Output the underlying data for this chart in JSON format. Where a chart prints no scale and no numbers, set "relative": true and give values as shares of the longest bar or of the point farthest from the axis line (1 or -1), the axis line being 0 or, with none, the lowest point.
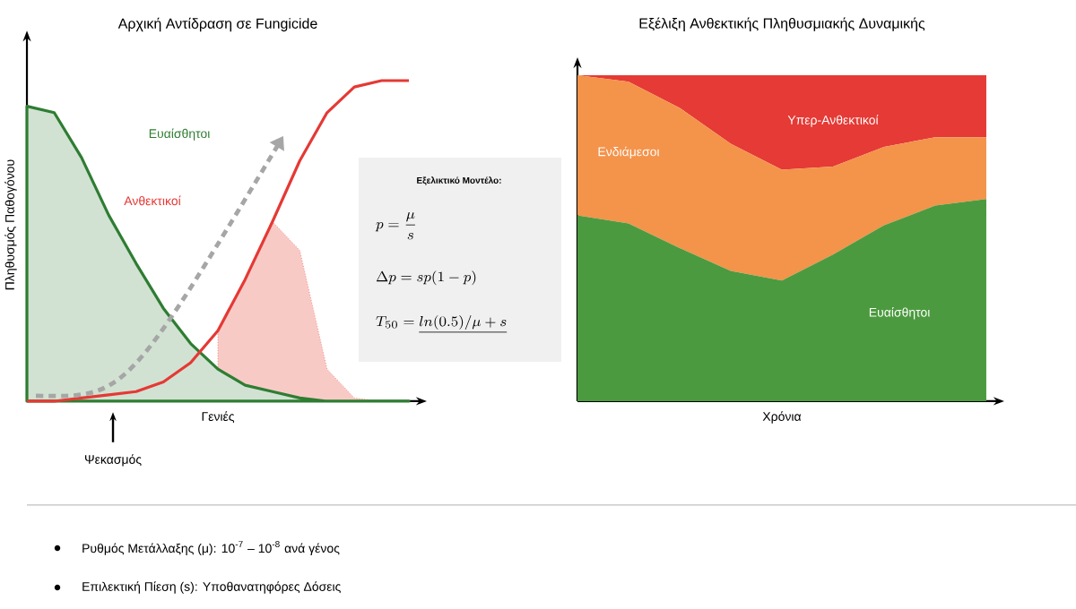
{
  "chart_data": [
    {
      "type": "line",
      "title": "Αρχική Αντίδραση σε Fungicide",
      "xlabel": "Γενιές",
      "ylabel": "Πληθυσμός Παθογόνου",
      "relative": true,
      "categories": [
        null,
        null,
        null,
        null,
        null,
        null,
        null,
        null,
        null,
        null,
        null,
        null,
        null,
        null,
        null
      ],
      "series": [
        {
          "name": "Ευαίσθητοι",
          "type": "area",
          "color": "#2e7d32",
          "values": [
            0.92,
            0.9,
            0.76,
            0.58,
            0.43,
            0.29,
            0.18,
            0.1,
            0.05,
            0.03,
            0.01,
            0,
            0,
            0,
            0
          ]
        },
        {
          "name": "Ανθεκτικοί",
          "type": "line",
          "color": "#e53935",
          "values": [
            0,
            0,
            0.01,
            0.02,
            0.03,
            0.06,
            0.12,
            0.22,
            0.38,
            0.56,
            0.75,
            0.9,
            0.98,
            1,
            1
          ]
        },
        {
          "type": "area",
          "color": "#f08a80",
          "values": [
            null,
            null,
            null,
            null,
            null,
            null,
            null,
            0.22,
            0.38,
            0.56,
            0.47,
            0.1,
            0.01,
            0,
            null
          ]
        }
      ],
      "annotations": [
        "Ψεκασμός",
        "Εξελικτικό Μοντέλο:",
        "p = \\frac{\\mu}{s}",
        "\\Delta p = sp(1-p)",
        "T_{50} = \\underline{ln(0.5)/\\mu + s}"
      ]
    },
    {
      "type": "area",
      "title": "Εξέλιξη Ανθεκτικής Πληθυσμιακής Δυναμικής",
      "xlabel": "Χρόνια",
      "relative": true,
      "stacked": true,
      "categories": [
        null,
        null,
        null,
        null,
        null,
        null,
        null,
        null,
        null
      ],
      "series": [
        {
          "name": "Ευαίσθητοι",
          "color": "#4c9a3f",
          "values": [
            0.57,
            0.545,
            0.47,
            0.4,
            0.37,
            0.45,
            0.54,
            0.6,
            0.62
          ]
        },
        {
          "name": "Ενδιάμεσοι",
          "color": "#f4934a",
          "values": [
            0.43,
            0.435,
            0.43,
            0.39,
            0.34,
            0.27,
            0.24,
            0.21,
            0.19
          ]
        },
        {
          "name": "Υπερ-Ανθεκτικοί",
          "color": "#e53a35",
          "values": [
            0,
            0.02,
            0.1,
            0.21,
            0.29,
            0.28,
            0.22,
            0.19,
            0.19
          ]
        }
      ]
    },
    {
      "type": "other",
      "annotations": [
        "Ρυθμός Μετάλλαξης (μ): 10$^{-7}$ – 10$^{-8}$ ανά γένος",
        "Επιλεκτική Πίεση (s): Υποθανατηφόρες Δόσεις"
      ]
    }
  ]
}
